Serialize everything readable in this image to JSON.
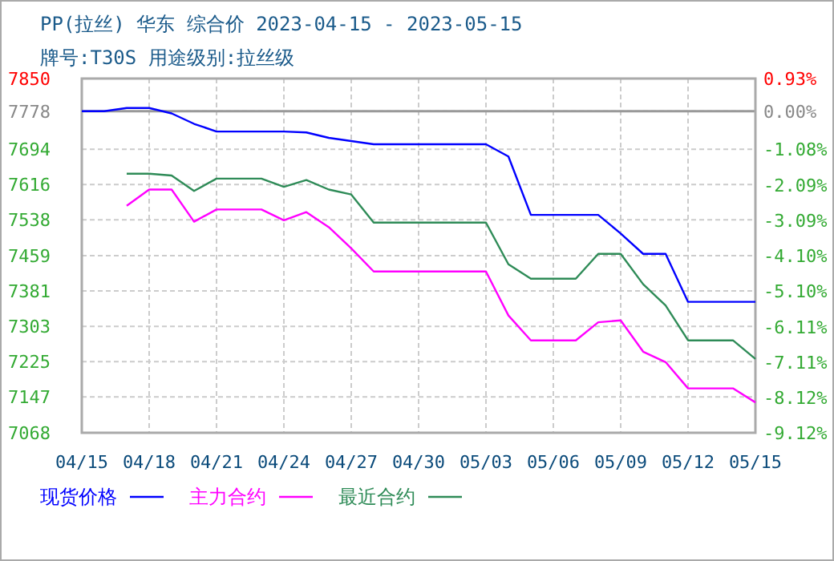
{
  "chart_data": {
    "type": "line",
    "title": "PP(拉丝) 华东 综合价 2023-04-15 - 2023-05-15",
    "subtitle": "牌号:T30S 用途级别:拉丝级",
    "x": [
      "2023-04-15",
      "2023-04-16",
      "2023-04-17",
      "2023-04-18",
      "2023-04-19",
      "2023-04-20",
      "2023-04-21",
      "2023-04-22",
      "2023-04-23",
      "2023-04-24",
      "2023-04-25",
      "2023-04-26",
      "2023-04-27",
      "2023-04-28",
      "2023-04-29",
      "2023-04-30",
      "2023-05-01",
      "2023-05-02",
      "2023-05-03",
      "2023-05-04",
      "2023-05-05",
      "2023-05-06",
      "2023-05-07",
      "2023-05-08",
      "2023-05-09",
      "2023-05-10",
      "2023-05-11",
      "2023-05-12",
      "2023-05-13",
      "2023-05-14",
      "2023-05-15"
    ],
    "series": [
      {
        "name": "现货价格",
        "color": "#0000ff",
        "values": [
          7778,
          7778,
          7785,
          7785,
          7773,
          7750,
          7733,
          7733,
          7733,
          7733,
          7731,
          7719,
          7712,
          7705,
          7705,
          7705,
          7705,
          7705,
          7705,
          7678,
          7549,
          7549,
          7549,
          7549,
          7508,
          7463,
          7463,
          7357,
          7357,
          7357,
          7357
        ]
      },
      {
        "name": "主力合约",
        "color": "#ff00ff",
        "values": [
          null,
          null,
          7569,
          7605,
          7605,
          7534,
          7561,
          7561,
          7561,
          7537,
          7555,
          7522,
          7475,
          7424,
          7424,
          7424,
          7424,
          7424,
          7424,
          7327,
          7272,
          7272,
          7272,
          7312,
          7316,
          7247,
          7224,
          7166,
          7166,
          7166,
          7135
        ]
      },
      {
        "name": "最近合约",
        "color": "#2e8b57",
        "values": [
          null,
          null,
          7640,
          7640,
          7636,
          7602,
          7629,
          7629,
          7629,
          7611,
          7626,
          7605,
          7594,
          7532,
          7532,
          7532,
          7532,
          7532,
          7532,
          7440,
          7408,
          7408,
          7408,
          7463,
          7463,
          7396,
          7349,
          7272,
          7272,
          7272,
          7231
        ]
      }
    ],
    "xlim": [
      "2023-04-15",
      "2023-05-15"
    ],
    "xticks": [
      {
        "value": "2023-04-15",
        "label": "04/15"
      },
      {
        "value": "2023-04-18",
        "label": "04/18"
      },
      {
        "value": "2023-04-21",
        "label": "04/21"
      },
      {
        "value": "2023-04-24",
        "label": "04/24"
      },
      {
        "value": "2023-04-27",
        "label": "04/27"
      },
      {
        "value": "2023-04-30",
        "label": "04/30"
      },
      {
        "value": "2023-05-03",
        "label": "05/03"
      },
      {
        "value": "2023-05-06",
        "label": "05/06"
      },
      {
        "value": "2023-05-09",
        "label": "05/09"
      },
      {
        "value": "2023-05-12",
        "label": "05/12"
      },
      {
        "value": "2023-05-15",
        "label": "05/15"
      }
    ],
    "ylim": [
      7068,
      7850
    ],
    "yticks": [
      7068,
      7147,
      7225,
      7303,
      7381,
      7459,
      7538,
      7616,
      7694,
      7778,
      7850
    ],
    "y2lim": [
      -9.12,
      0.93
    ],
    "y2ticks": [
      {
        "value": -9.12,
        "label": "-9.12%"
      },
      {
        "value": -8.12,
        "label": "-8.12%"
      },
      {
        "value": -7.11,
        "label": "-7.11%"
      },
      {
        "value": -6.11,
        "label": "-6.11%"
      },
      {
        "value": -5.1,
        "label": "-5.10%"
      },
      {
        "value": -4.1,
        "label": "-4.10%"
      },
      {
        "value": -3.09,
        "label": "-3.09%"
      },
      {
        "value": -2.09,
        "label": "-2.09%"
      },
      {
        "value": -1.08,
        "label": "-1.08%"
      },
      {
        "value": 0,
        "label": "0.00%"
      },
      {
        "value": 0.93,
        "label": "0.93%"
      }
    ],
    "ref_lines": [
      {
        "axis": "y",
        "value": 7778,
        "color": "#999999"
      }
    ],
    "grid": true,
    "legend": "bottom",
    "marker": "none",
    "line_style": "solid"
  }
}
